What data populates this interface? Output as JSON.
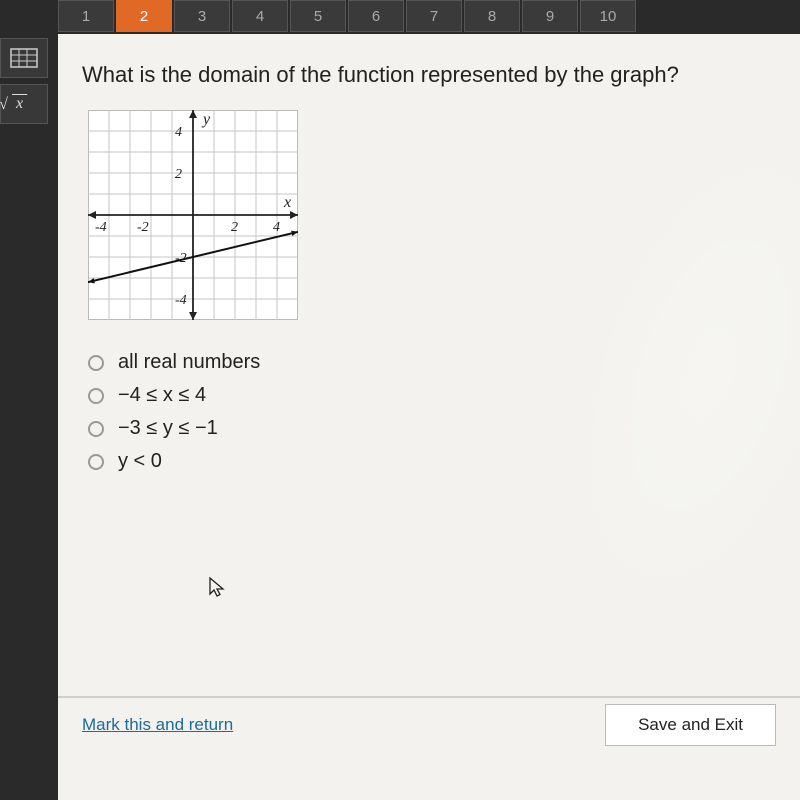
{
  "tabs": {
    "list": [
      "1",
      "2",
      "3",
      "4",
      "5",
      "6",
      "7",
      "8",
      "9",
      "10"
    ],
    "active": 1
  },
  "tools": {
    "calc": "▦",
    "sqrt": "√x"
  },
  "question": "What is the domain of the function represented by the graph?",
  "graph": {
    "size": 210,
    "xmin": -5,
    "xmax": 5,
    "ymin": -5,
    "ymax": 5,
    "ticks_x": [
      -4,
      -2,
      2,
      4
    ],
    "ticks_y": [
      -4,
      -2,
      2,
      4
    ],
    "tick_labels_x": {
      "-4": "-4",
      "-2": "-2",
      "2": "2",
      "4": "4"
    },
    "tick_labels_y": {
      "-4": "-4",
      "-2": "-2",
      "2": "2",
      "4": "4"
    },
    "grid_color": "#c6c6c6",
    "axis_color": "#222",
    "line_p1": [
      -5,
      -3.2
    ],
    "line_p2": [
      5,
      -0.8
    ],
    "line_color": "#111",
    "line_width": 2,
    "x_label": "x",
    "y_label": "y"
  },
  "options": {
    "a": "all real numbers",
    "b": "−4 ≤ x ≤ 4",
    "c": "−3 ≤ y ≤ −1",
    "d": "y < 0"
  },
  "footer": {
    "mark": "Mark this and return",
    "save": "Save and Exit"
  }
}
